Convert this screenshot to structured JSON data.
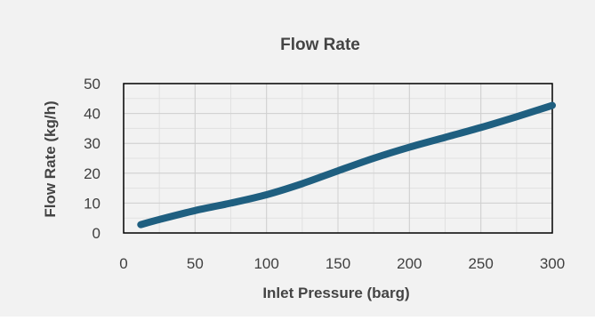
{
  "chart_data": {
    "type": "line",
    "title": "Flow Rate",
    "xlabel": "Inlet Pressure (barg)",
    "ylabel": "Flow Rate (kg/h)",
    "xlim": [
      0,
      300
    ],
    "ylim": [
      0,
      50
    ],
    "x_ticks": [
      0,
      50,
      100,
      150,
      200,
      250,
      300
    ],
    "y_ticks": [
      0,
      10,
      20,
      30,
      40,
      50
    ],
    "grid": true,
    "legend": "none",
    "series": [
      {
        "color": "#1f5f80",
        "x": [
          12,
          25,
          50,
          75,
          100,
          125,
          150,
          175,
          200,
          225,
          250,
          275,
          300
        ],
        "y": [
          2.8,
          4.5,
          7.5,
          10,
          12.8,
          16.5,
          20.8,
          25,
          28.7,
          32,
          35.3,
          38.9,
          42.7
        ]
      }
    ]
  }
}
